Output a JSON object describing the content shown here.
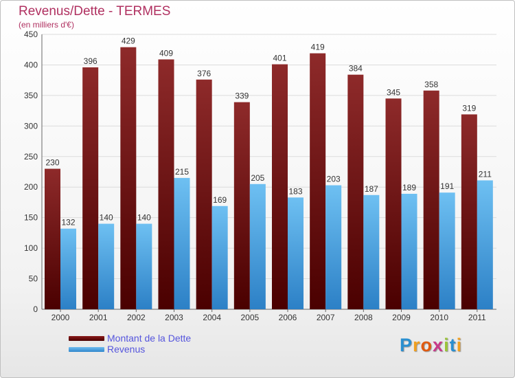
{
  "title": "Revenus/Dette - TERMES",
  "subtitle": "(en milliers d'€)",
  "legend": {
    "debt_label": "Montant de la Dette",
    "revenue_label": "Revenus"
  },
  "logo": {
    "letters": [
      "P",
      "r",
      "o",
      "x",
      "i",
      "t",
      "i"
    ]
  },
  "colors": {
    "debt_top": "#8a1f1f",
    "debt_bottom": "#4a0000",
    "revenue_top": "#6ec0f2",
    "revenue_bottom": "#2c80c6",
    "title": "#b03060",
    "legend_text": "#5555dd"
  },
  "chart_data": {
    "type": "bar",
    "title": "Revenus/Dette - TERMES",
    "ylabel": "(en milliers d'€)",
    "categories": [
      "2000",
      "2001",
      "2002",
      "2003",
      "2004",
      "2005",
      "2006",
      "2007",
      "2008",
      "2009",
      "2010",
      "2011"
    ],
    "series": [
      {
        "name": "Montant de la Dette",
        "values": [
          230,
          396,
          429,
          409,
          376,
          339,
          401,
          419,
          384,
          345,
          358,
          319
        ]
      },
      {
        "name": "Revenus",
        "values": [
          132,
          140,
          140,
          215,
          169,
          205,
          183,
          203,
          187,
          189,
          191,
          211
        ]
      }
    ],
    "ylim": [
      0,
      450
    ],
    "yticks": [
      0,
      50,
      100,
      150,
      200,
      250,
      300,
      350,
      400,
      450
    ],
    "grid": true,
    "legend_position": "bottom-left"
  }
}
